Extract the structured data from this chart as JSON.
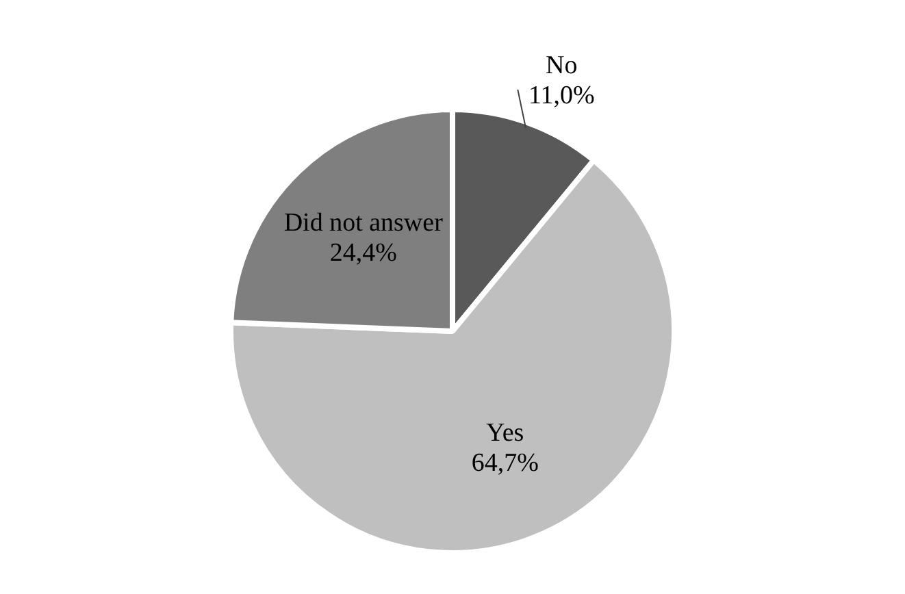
{
  "chart_data": {
    "type": "pie",
    "categories": [
      "No",
      "Yes",
      "Did not answer"
    ],
    "values": [
      11.0,
      64.7,
      24.4
    ],
    "colors": [
      "#595959",
      "#bfbfbf",
      "#7f7f7f"
    ],
    "value_labels": [
      "11,0%",
      "64,7%",
      "24,4%"
    ],
    "legend": false
  }
}
